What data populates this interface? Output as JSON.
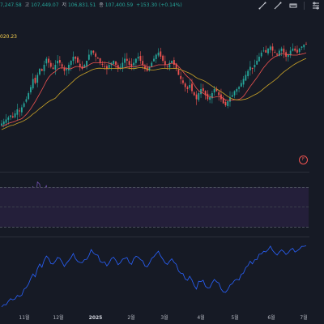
{
  "header": {
    "ohlc": [
      {
        "key": "",
        "value": "7,247.58"
      },
      {
        "key": "고",
        "value": "107,449.07"
      },
      {
        "key": "저",
        "value": "106,831.51"
      },
      {
        "key": "종",
        "value": "107,400.59"
      }
    ],
    "change": "+153.30 (+0.14%)"
  },
  "toolbar": {
    "icons": [
      "trend-line-icon",
      "trend-line-alt-icon",
      "ruler-icon",
      "settings-icon"
    ]
  },
  "price_tag": "020.23",
  "indicator_badge": "F",
  "colors": {
    "background": "#161a25",
    "up": "#26a69a",
    "down": "#ef5350",
    "ma_fast": "#ef5350",
    "ma_slow": "#c9a227",
    "rsi_line": "#7e57c2",
    "rsi_ma": "#e8d27a",
    "rsi_band": "#241f3a",
    "bottom_line": "#2962ff"
  },
  "xaxis": {
    "labels": [
      {
        "text": "11월",
        "bold": false
      },
      {
        "text": "12월",
        "bold": false
      },
      {
        "text": "2025",
        "bold": true
      },
      {
        "text": "2월",
        "bold": false
      },
      {
        "text": "3월",
        "bold": false
      },
      {
        "text": "4월",
        "bold": false
      },
      {
        "text": "5월",
        "bold": false
      },
      {
        "text": "6월",
        "bold": false
      },
      {
        "text": "7월",
        "bold": false
      }
    ]
  },
  "chart_data": {
    "type": "candlestick",
    "price_series_close": [
      68,
      69,
      70,
      71,
      72,
      71,
      73,
      75,
      74,
      76,
      78,
      80,
      83,
      86,
      90,
      88,
      92,
      95,
      94,
      97,
      100,
      98,
      96,
      95,
      97,
      99,
      98,
      96,
      94,
      95,
      97,
      99,
      101,
      100,
      98,
      96,
      95,
      97,
      99,
      102,
      104,
      103,
      101,
      100,
      98,
      97,
      96,
      95,
      97,
      98,
      99,
      97,
      95,
      96,
      98,
      100,
      99,
      97,
      96,
      98,
      100,
      101,
      99,
      97,
      95,
      94,
      96,
      98,
      100,
      102,
      103,
      101,
      99,
      97,
      96,
      98,
      99,
      97,
      95,
      92,
      90,
      88,
      86,
      85,
      87,
      84,
      82,
      80,
      83,
      85,
      84,
      82,
      80,
      81,
      83,
      85,
      84,
      82,
      80,
      78,
      77,
      79,
      81,
      82,
      84,
      85,
      86,
      88,
      90,
      92,
      94,
      96,
      95,
      97,
      99,
      101,
      103,
      104,
      103,
      105,
      106,
      104,
      103,
      102,
      104,
      105,
      103,
      101,
      102,
      104,
      105,
      104,
      103,
      105,
      106,
      107,
      107
    ],
    "rsi_levels": {
      "upper": 70,
      "lower": 30
    }
  }
}
